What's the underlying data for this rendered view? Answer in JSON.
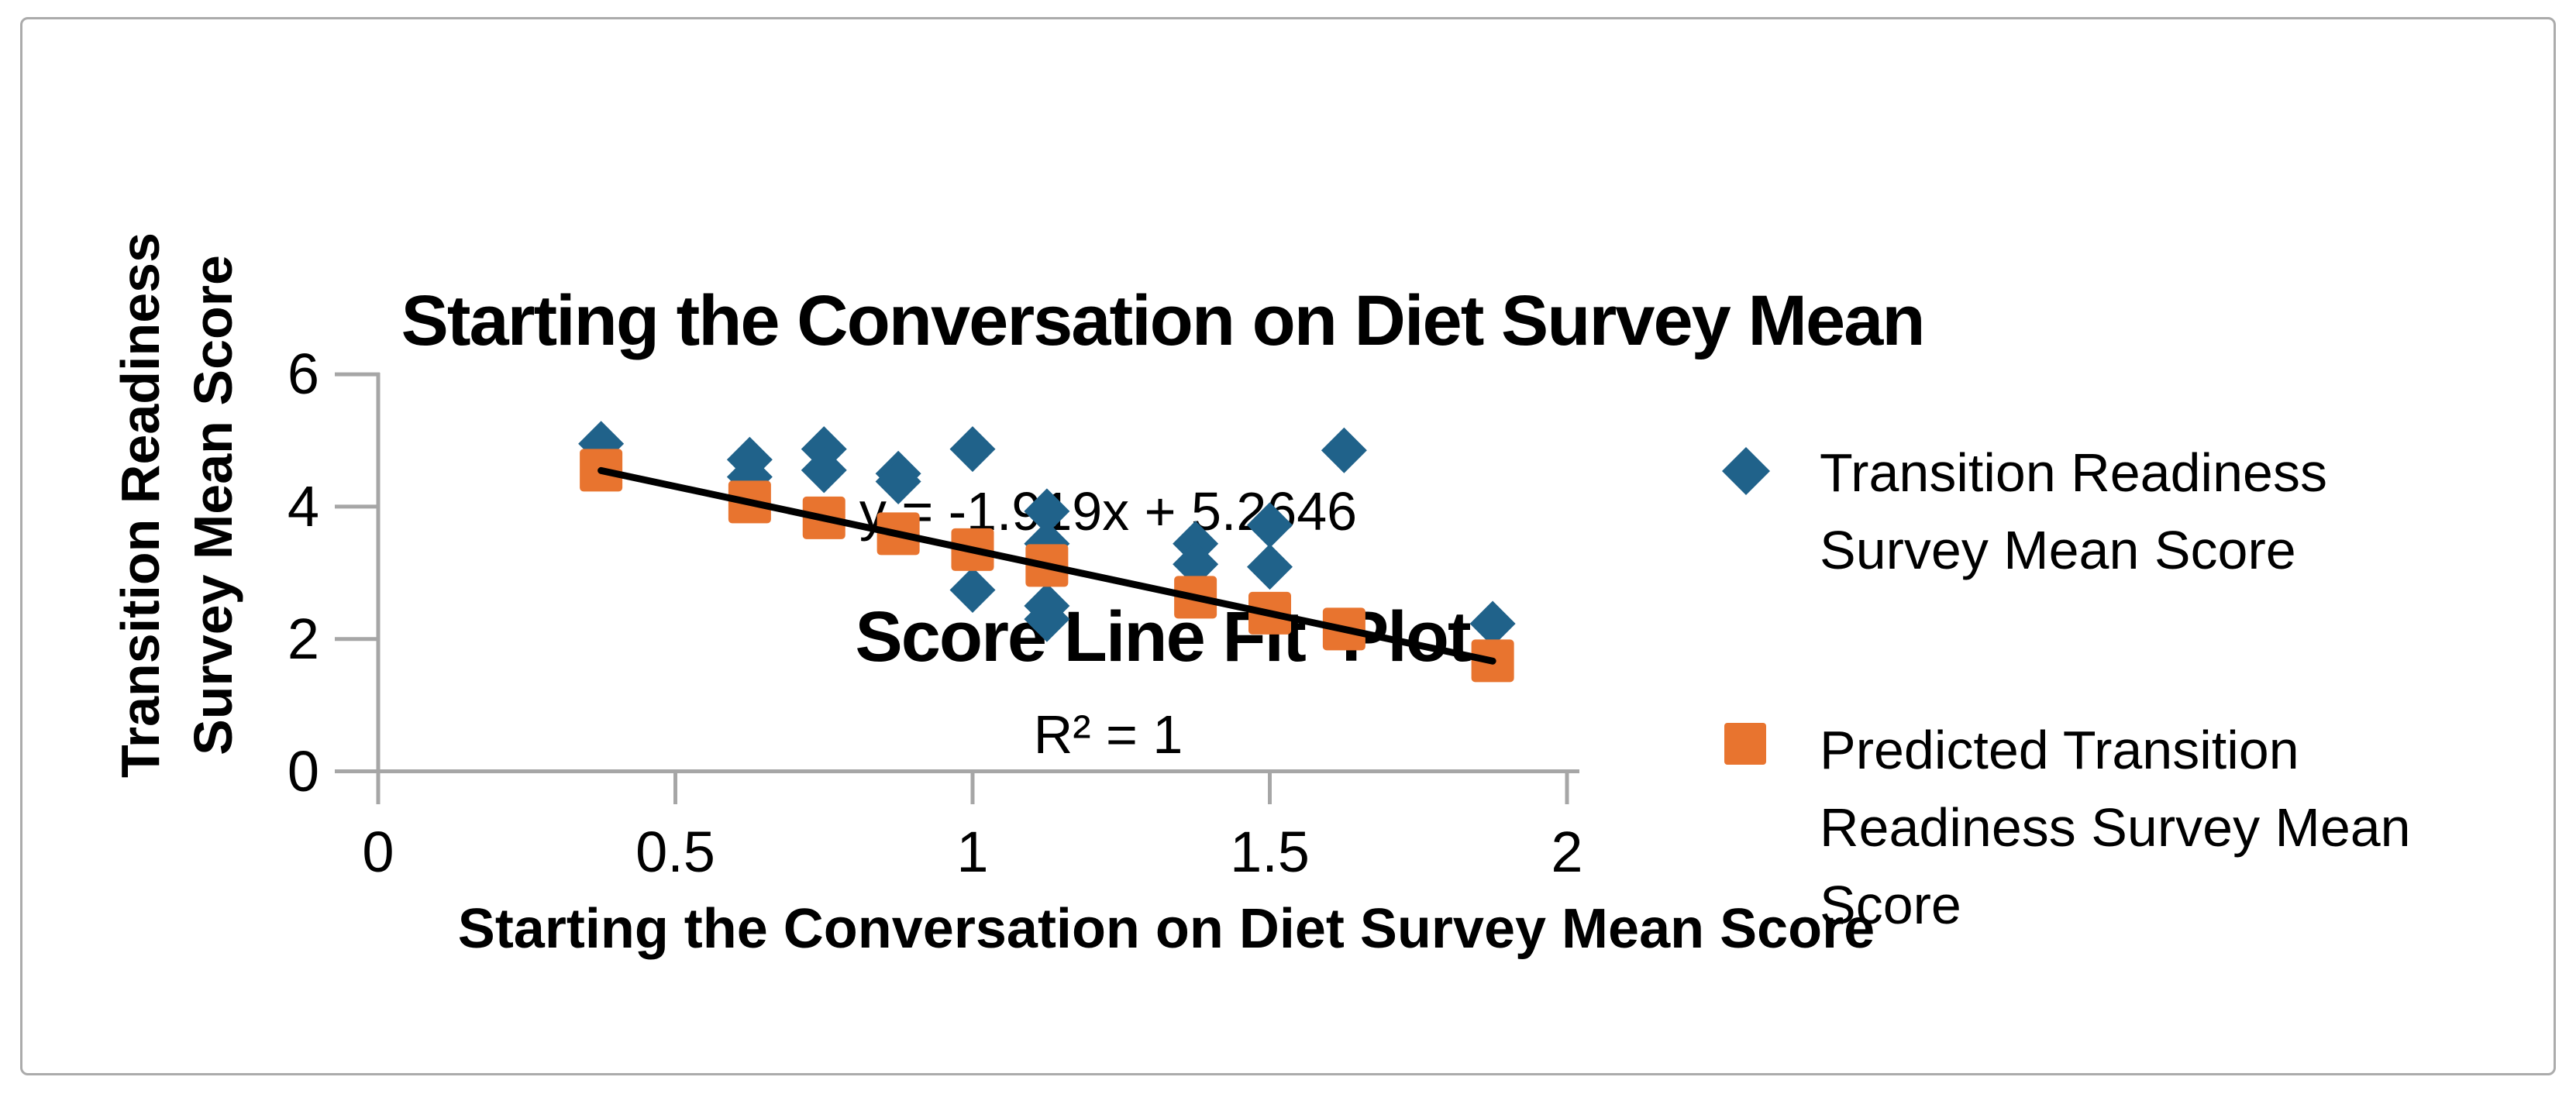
{
  "title": {
    "line1": "Starting the Conversation on Diet Survey Mean",
    "line2": "Score Line Fit  Plot"
  },
  "equation": {
    "line1": "y = -1.919x + 5.2646",
    "line2": "R² = 1"
  },
  "axes": {
    "x": {
      "label": "Starting the Conversation on Diet Survey Mean Score",
      "tick_labels": [
        "0",
        "0.5",
        "1",
        "1.5",
        "2"
      ],
      "tick_values": [
        0,
        0.5,
        1,
        1.5,
        2
      ],
      "range": [
        0,
        2
      ]
    },
    "y": {
      "label_line1": "Transition Readiness",
      "label_line2": "Survey Mean Score",
      "tick_labels": [
        "0",
        "2",
        "4",
        "6"
      ],
      "tick_values": [
        0,
        2,
        4,
        6
      ],
      "range": [
        0,
        6
      ]
    }
  },
  "legend": {
    "position": "right",
    "items": [
      {
        "marker": "diamond",
        "marker_name": "blue-diamond-marker",
        "color": "#20628A",
        "lines": [
          "Transition Readiness",
          "Survey Mean Score"
        ]
      },
      {
        "marker": "square",
        "marker_name": "orange-square-marker",
        "color": "#E8742F",
        "lines": [
          "Predicted Transition",
          "Readiness Survey Mean",
          "Score"
        ]
      }
    ]
  },
  "colors": {
    "series_actual": "#20628A",
    "series_predicted": "#E8742F",
    "trendline": "#000000",
    "axis": "#A6A6A6",
    "border": "#ABABAB"
  },
  "chart_data": {
    "type": "scatter",
    "title": "Starting the Conversation on Diet Survey Mean Score Line Fit  Plot",
    "xlabel": "Starting the Conversation on Diet Survey Mean Score",
    "ylabel": "Transition Readiness Survey Mean Score",
    "xlim": [
      0,
      2
    ],
    "ylim": [
      0,
      6
    ],
    "grid": false,
    "equation": "y = -1.919x + 5.2646",
    "r_squared": "R² = 1",
    "series": [
      {
        "name": "Transition Readiness Survey Mean Score",
        "marker": "diamond",
        "color": "#20628A",
        "points": [
          [
            0.375,
            4.95
          ],
          [
            0.625,
            4.71
          ],
          [
            0.625,
            4.45
          ],
          [
            0.75,
            4.87
          ],
          [
            0.75,
            4.55
          ],
          [
            0.875,
            4.5
          ],
          [
            0.875,
            4.38
          ],
          [
            1.0,
            4.87
          ],
          [
            1.0,
            2.74
          ],
          [
            1.125,
            3.93
          ],
          [
            1.125,
            3.44
          ],
          [
            1.125,
            2.5
          ],
          [
            1.125,
            2.3
          ],
          [
            1.375,
            3.44
          ],
          [
            1.375,
            3.13
          ],
          [
            1.5,
            3.72
          ],
          [
            1.5,
            3.09
          ],
          [
            1.625,
            4.85
          ],
          [
            1.875,
            2.23
          ]
        ]
      },
      {
        "name": "Predicted Transition Readiness Survey Mean Score",
        "marker": "square",
        "color": "#E8742F",
        "points": [
          [
            0.375,
            4.55
          ],
          [
            0.625,
            4.07
          ],
          [
            0.75,
            3.83
          ],
          [
            0.875,
            3.59
          ],
          [
            1.0,
            3.35
          ],
          [
            1.125,
            3.11
          ],
          [
            1.375,
            2.63
          ],
          [
            1.5,
            2.39
          ],
          [
            1.625,
            2.15
          ],
          [
            1.875,
            1.67
          ]
        ]
      }
    ],
    "trendline": {
      "x1": 0.375,
      "y1": 4.545,
      "x2": 1.875,
      "y2": 1.666,
      "color": "#000000"
    }
  }
}
